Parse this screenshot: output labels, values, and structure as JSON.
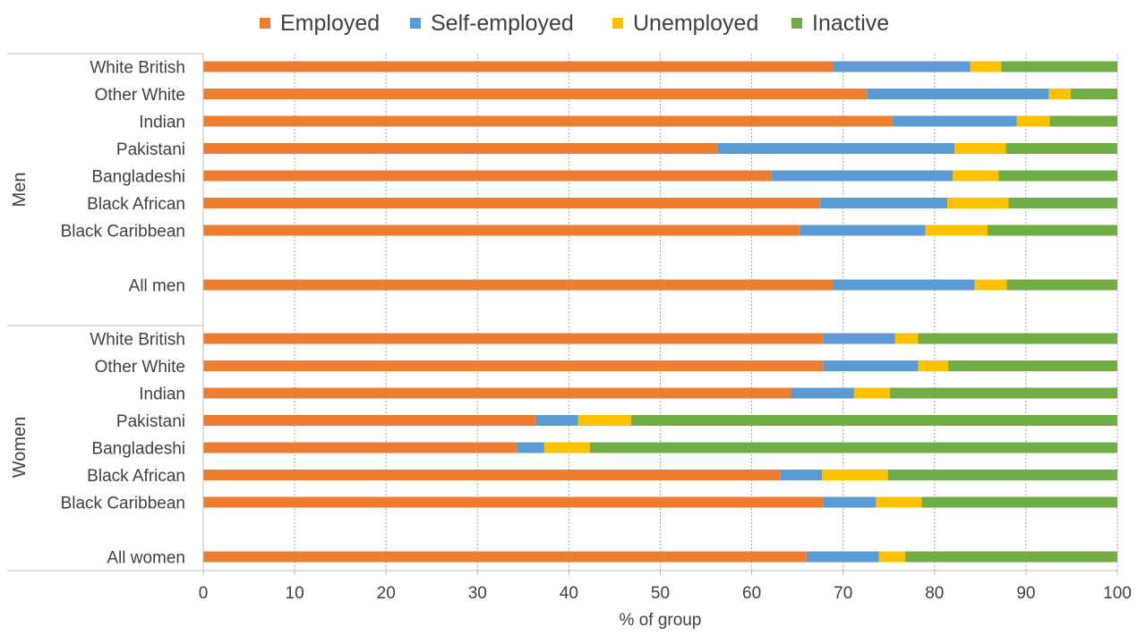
{
  "chart_data": {
    "type": "bar",
    "orientation": "horizontal",
    "stacked": true,
    "xlabel": "% of group",
    "xlim": [
      0,
      100
    ],
    "x_ticks": [
      "0",
      "10",
      "20",
      "30",
      "40",
      "50",
      "60",
      "70",
      "80",
      "90",
      "100"
    ],
    "grid": "vertical dotted",
    "legend_position": "top",
    "legend": [
      {
        "name": "Employed",
        "color": "#ED7D31"
      },
      {
        "name": "Self-employed",
        "color": "#5B9BD5"
      },
      {
        "name": "Unemployed",
        "color": "#FFC000"
      },
      {
        "name": "Inactive",
        "color": "#70AD47"
      }
    ],
    "groups": [
      {
        "label": "Men",
        "categories": [
          "White British",
          "Other White",
          "Indian",
          "Pakistani",
          "Bangladeshi",
          "Black African",
          "Black Caribbean",
          "All men"
        ],
        "series": [
          {
            "name": "Employed",
            "values": [
              68.9,
              72.6,
              75.4,
              56.2,
              62.2,
              67.5,
              65.3,
              68.9
            ]
          },
          {
            "name": "Self-employed",
            "values": [
              15.0,
              19.9,
              13.6,
              26.0,
              19.8,
              13.9,
              13.7,
              15.5
            ]
          },
          {
            "name": "Unemployed",
            "values": [
              3.4,
              2.4,
              3.6,
              5.6,
              5.0,
              6.7,
              6.8,
              3.5
            ]
          },
          {
            "name": "Inactive",
            "values": [
              12.7,
              5.1,
              7.4,
              12.2,
              13.0,
              11.9,
              14.2,
              12.1
            ]
          }
        ]
      },
      {
        "label": "Women",
        "categories": [
          "White British",
          "Other White",
          "Indian",
          "Pakistani",
          "Bangladeshi",
          "Black African",
          "Black Caribbean",
          "All women"
        ],
        "series": [
          {
            "name": "Employed",
            "values": [
              67.8,
              67.8,
              64.3,
              36.4,
              34.3,
              63.1,
              67.8,
              66.0
            ]
          },
          {
            "name": "Self-employed",
            "values": [
              7.9,
              10.4,
              6.9,
              4.6,
              3.0,
              4.6,
              5.8,
              7.9
            ]
          },
          {
            "name": "Unemployed",
            "values": [
              2.5,
              3.3,
              3.9,
              5.8,
              5.0,
              7.2,
              5.0,
              2.9
            ]
          },
          {
            "name": "Inactive",
            "values": [
              21.8,
              18.5,
              24.9,
              53.2,
              57.7,
              25.1,
              21.4,
              23.2
            ]
          }
        ]
      }
    ]
  }
}
